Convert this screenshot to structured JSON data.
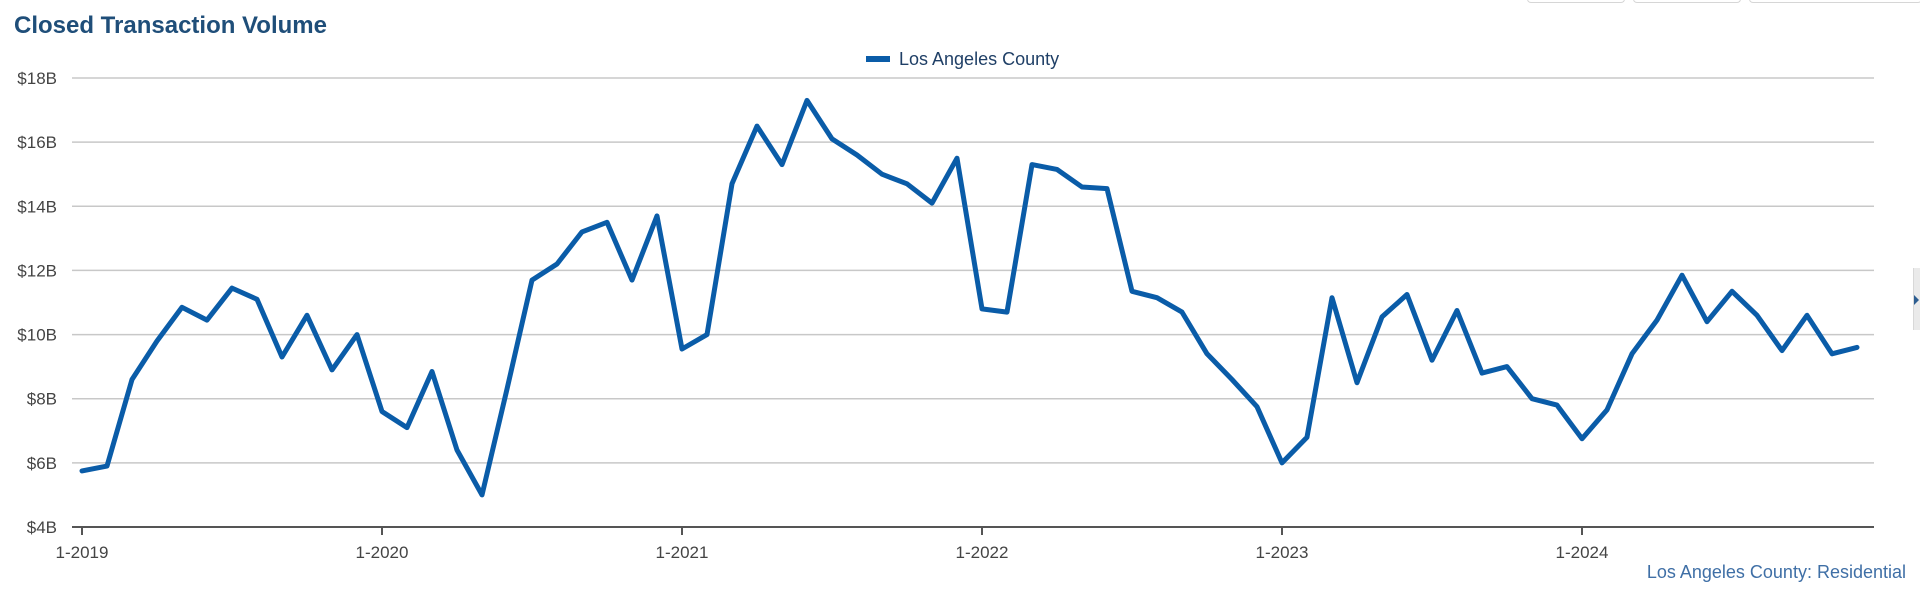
{
  "chart_data": {
    "type": "line",
    "title": "Closed Transaction Volume",
    "source_label": "Los Angeles County: Residential",
    "legend": {
      "position": "top-center"
    },
    "grid": true,
    "ylim": [
      4,
      18
    ],
    "y_ticks": [
      {
        "value": 4,
        "label": "$4B"
      },
      {
        "value": 6,
        "label": "$6B"
      },
      {
        "value": 8,
        "label": "$8B"
      },
      {
        "value": 10,
        "label": "$10B"
      },
      {
        "value": 12,
        "label": "$12B"
      },
      {
        "value": 14,
        "label": "$14B"
      },
      {
        "value": 16,
        "label": "$16B"
      },
      {
        "value": 18,
        "label": "$18B"
      }
    ],
    "x_ticks": [
      "1-2019",
      "1-2020",
      "1-2021",
      "1-2022",
      "1-2023",
      "1-2024"
    ],
    "series": [
      {
        "name": "Los Angeles County",
        "color": "#0a5ca8",
        "values": [
          5.75,
          5.9,
          8.6,
          9.8,
          10.85,
          10.45,
          11.45,
          11.1,
          9.3,
          10.6,
          8.9,
          10.0,
          7.6,
          7.1,
          8.85,
          6.4,
          5.0,
          8.3,
          11.7,
          12.2,
          13.2,
          13.5,
          11.7,
          13.7,
          9.55,
          10.0,
          14.7,
          16.5,
          15.3,
          17.3,
          16.1,
          15.6,
          15.0,
          14.7,
          14.1,
          15.5,
          10.8,
          10.7,
          15.3,
          15.15,
          14.6,
          14.55,
          11.35,
          11.15,
          10.7,
          9.4,
          8.6,
          7.75,
          6.0,
          6.8,
          11.15,
          8.5,
          10.55,
          11.25,
          9.2,
          10.75,
          8.8,
          9.0,
          8.0,
          7.8,
          6.75,
          7.65,
          9.4,
          10.45,
          11.85,
          10.4,
          11.35,
          10.6,
          9.5,
          10.6,
          9.4,
          9.6
        ]
      }
    ]
  }
}
